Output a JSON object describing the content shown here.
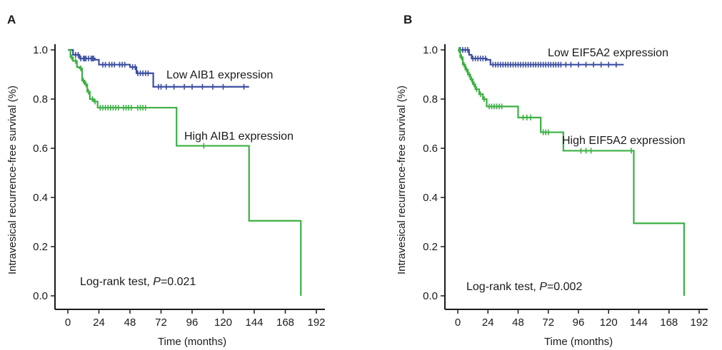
{
  "colors": {
    "low": "#3b4fa0",
    "high": "#3cb043",
    "axis": "#1a1a1a"
  },
  "chart_data": [
    {
      "type": "line",
      "panel_label": "A",
      "xlabel": "Time (months)",
      "ylabel": "Intravesical recurrence-free survival (%)",
      "xlim": [
        0,
        192
      ],
      "ylim": [
        0,
        1
      ],
      "x_ticks": [
        "0",
        "24",
        "48",
        "72",
        "96",
        "120",
        "144",
        "168",
        "192"
      ],
      "y_ticks": [
        "0.0",
        "0.2",
        "0.4",
        "0.6",
        "0.8",
        "1.0"
      ],
      "annotation_prefix": "Log-rank test, ",
      "annotation_italic": "P",
      "annotation_suffix": "=0.021",
      "series": [
        {
          "name": "Low AIB1 expression",
          "color_key": "low",
          "steps": [
            [
              0,
              1.0
            ],
            [
              4,
              0.98
            ],
            [
              9,
              0.965
            ],
            [
              21,
              0.96
            ],
            [
              24,
              0.94
            ],
            [
              30,
              0.94
            ],
            [
              38,
              0.94
            ],
            [
              48,
              0.93
            ],
            [
              53,
              0.905
            ],
            [
              63,
              0.905
            ],
            [
              66,
              0.85
            ],
            [
              140,
              0.85
            ]
          ],
          "censor": [
            6,
            8,
            10,
            12,
            13,
            14,
            16,
            18,
            19,
            20,
            27,
            29,
            32,
            34,
            36,
            40,
            42,
            44,
            50,
            52,
            54,
            56,
            58,
            60,
            62,
            70,
            72,
            76,
            82,
            90,
            96,
            104,
            112,
            120,
            136
          ]
        },
        {
          "name": "High AIB1 expression",
          "color_key": "high",
          "steps": [
            [
              0,
              1.0
            ],
            [
              2,
              0.97
            ],
            [
              4,
              0.955
            ],
            [
              7,
              0.93
            ],
            [
              9,
              0.925
            ],
            [
              11,
              0.875
            ],
            [
              13,
              0.86
            ],
            [
              15,
              0.83
            ],
            [
              17,
              0.8
            ],
            [
              20,
              0.79
            ],
            [
              23,
              0.765
            ],
            [
              40,
              0.765
            ],
            [
              62,
              0.765
            ],
            [
              84,
              0.61
            ],
            [
              140,
              0.61
            ],
            [
              140,
              0.305
            ],
            [
              180,
              0.305
            ],
            [
              180,
              0.0
            ]
          ],
          "censor": [
            3,
            6,
            10,
            12,
            14,
            16,
            19,
            21,
            25,
            27,
            29,
            31,
            33,
            35,
            37,
            39,
            43,
            45,
            47,
            49,
            54,
            56,
            58,
            60,
            105
          ]
        }
      ]
    },
    {
      "type": "line",
      "panel_label": "B",
      "xlabel": "Time (months)",
      "ylabel": "Intravesical recurrence-free survival (%)",
      "xlim": [
        0,
        192
      ],
      "ylim": [
        0,
        1
      ],
      "x_ticks": [
        "0",
        "24",
        "48",
        "72",
        "96",
        "120",
        "144",
        "168",
        "192"
      ],
      "y_ticks": [
        "0.0",
        "0.2",
        "0.4",
        "0.6",
        "0.8",
        "1.0"
      ],
      "annotation_prefix": "Log-rank test, ",
      "annotation_italic": "P",
      "annotation_suffix": "=0.002",
      "series": [
        {
          "name": "Low EIF5A2 expression",
          "color_key": "low",
          "steps": [
            [
              0,
              1.0
            ],
            [
              9,
              0.98
            ],
            [
              11,
              0.965
            ],
            [
              23,
              0.96
            ],
            [
              26,
              0.94
            ],
            [
              132,
              0.94
            ]
          ],
          "censor": [
            2,
            4,
            6,
            8,
            12,
            14,
            16,
            18,
            20,
            22,
            28,
            30,
            32,
            34,
            36,
            38,
            40,
            42,
            44,
            46,
            48,
            50,
            52,
            54,
            56,
            58,
            60,
            62,
            64,
            66,
            68,
            70,
            72,
            74,
            76,
            78,
            80,
            82,
            86,
            90,
            96,
            102,
            108,
            114,
            120,
            126
          ]
        },
        {
          "name": "High EIF5A2 expression",
          "color_key": "high",
          "steps": [
            [
              0,
              1.0
            ],
            [
              2,
              0.97
            ],
            [
              4,
              0.94
            ],
            [
              6,
              0.92
            ],
            [
              8,
              0.9
            ],
            [
              10,
              0.88
            ],
            [
              12,
              0.86
            ],
            [
              14,
              0.84
            ],
            [
              17,
              0.82
            ],
            [
              20,
              0.8
            ],
            [
              23,
              0.77
            ],
            [
              48,
              0.725
            ],
            [
              66,
              0.665
            ],
            [
              84,
              0.59
            ],
            [
              140,
              0.59
            ],
            [
              140,
              0.295
            ],
            [
              180,
              0.295
            ],
            [
              180,
              0.0
            ]
          ],
          "censor": [
            1,
            3,
            5,
            7,
            9,
            11,
            13,
            15,
            18,
            21,
            25,
            27,
            29,
            31,
            33,
            35,
            52,
            55,
            58,
            68,
            70,
            72,
            98,
            102,
            106,
            138
          ]
        }
      ]
    }
  ]
}
